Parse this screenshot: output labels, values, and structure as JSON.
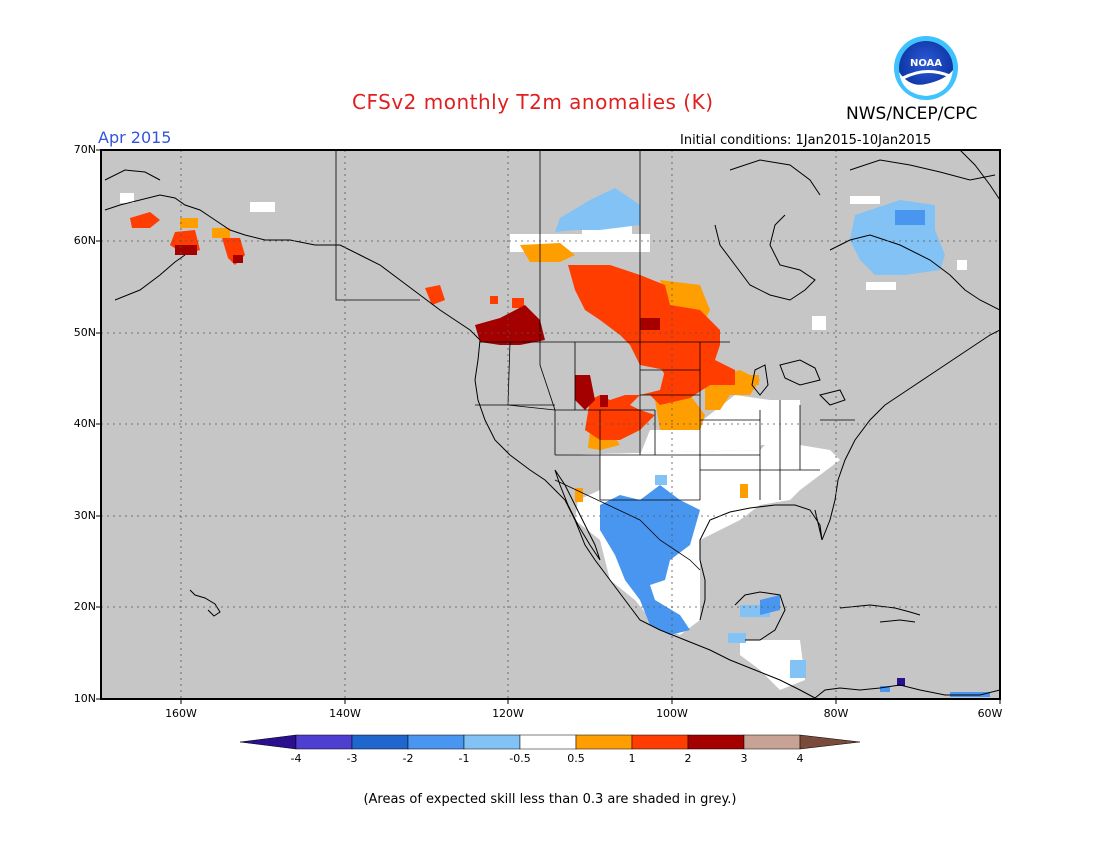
{
  "title": "CFSv2 monthly T2m anomalies (K)",
  "organization": "NWS/NCEP/CPC",
  "logo_text": "NOAA",
  "period": "Apr 2015",
  "initial_conditions": "Initial conditions: 1Jan2015-10Jan2015",
  "latitude_labels": [
    "70N",
    "60N",
    "50N",
    "40N",
    "30N",
    "20N",
    "10N"
  ],
  "longitude_labels": [
    "160W",
    "140W",
    "120W",
    "100W",
    "80W",
    "60W"
  ],
  "map_extent": {
    "lon_min": -170,
    "lon_max": -60,
    "lat_min": 10,
    "lat_max": 70
  },
  "colorbar": {
    "labels": [
      "-4",
      "-3",
      "-2",
      "-1",
      "-0.5",
      "0.5",
      "1",
      "2",
      "3",
      "4"
    ],
    "colors": [
      "#2a0f8f",
      "#4e3fd0",
      "#1f66cf",
      "#4896ef",
      "#82c2f5",
      "#ffffff",
      "#ff9e00",
      "#ff3d00",
      "#a40000",
      "#c9a296",
      "#7a4a3a"
    ]
  },
  "skill_note": "(Areas of expected skill less than 0.3 are shaded in grey.)",
  "colors": {
    "title": "#e02020",
    "period": "#3355dd",
    "ocean_grey": "#c6c6c6"
  }
}
